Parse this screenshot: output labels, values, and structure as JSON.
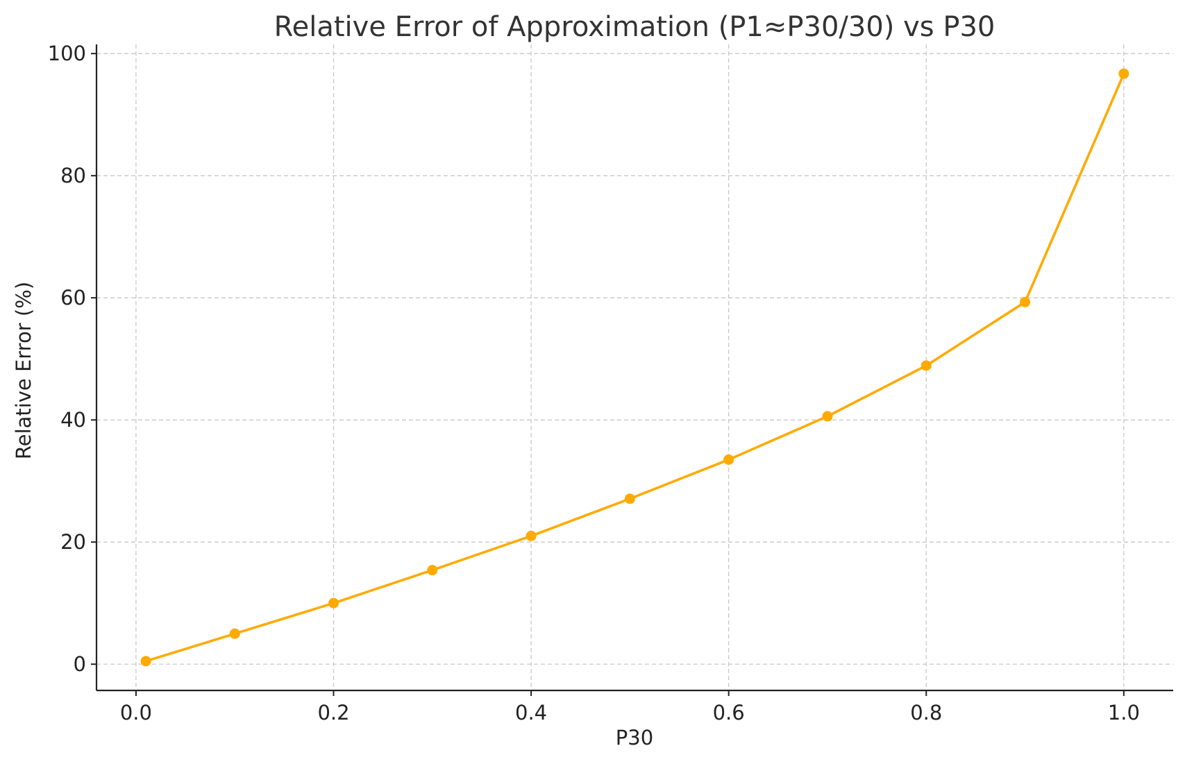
{
  "chart_data": {
    "type": "line",
    "title": "Relative Error of Approximation (P1≈P30/30) vs P30",
    "xlabel": "P30",
    "ylabel": "Relative Error (%)",
    "xlim": [
      -0.04,
      1.05
    ],
    "ylim": [
      -4.3,
      101.5
    ],
    "x_ticks": [
      0.0,
      0.2,
      0.4,
      0.6,
      0.8,
      1.0
    ],
    "x_tick_labels": [
      "0.0",
      "0.2",
      "0.4",
      "0.6",
      "0.8",
      "1.0"
    ],
    "y_ticks": [
      0,
      20,
      40,
      60,
      80,
      100
    ],
    "y_tick_labels": [
      "0",
      "20",
      "40",
      "60",
      "80",
      "100"
    ],
    "grid": true,
    "series": [
      {
        "color": "#FFAA00",
        "marker": "circle",
        "x": [
          0.01,
          0.1,
          0.2,
          0.3,
          0.4,
          0.5,
          0.6,
          0.7,
          0.8,
          0.9,
          1.0
        ],
        "y": [
          0.5,
          5.0,
          10.0,
          15.4,
          21.0,
          27.1,
          33.5,
          40.6,
          48.9,
          59.3,
          96.7
        ]
      }
    ]
  }
}
